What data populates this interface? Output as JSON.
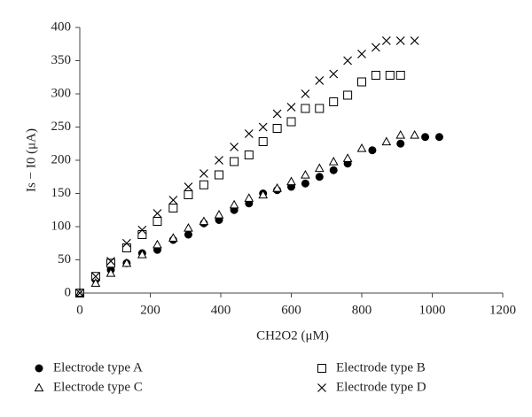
{
  "chart_data": {
    "type": "scatter",
    "xlabel": "CH2O2 (μM)",
    "ylabel": "Is − I0 (μA)",
    "xlim": [
      0,
      1200
    ],
    "xticks": [
      0,
      200,
      400,
      600,
      800,
      1000,
      1200
    ],
    "ylim": [
      0,
      400
    ],
    "yticks": [
      0,
      50,
      100,
      150,
      200,
      250,
      300,
      350,
      400
    ],
    "grid": false,
    "legend": "bottom",
    "series": [
      {
        "name": "Electrode type A",
        "marker": "circle",
        "color": "#000000",
        "x": [
          0,
          45,
          88,
          133,
          177,
          220,
          265,
          308,
          352,
          395,
          438,
          480,
          520,
          560,
          600,
          640,
          680,
          720,
          760,
          830,
          910,
          980,
          1020
        ],
        "values": [
          0,
          20,
          35,
          45,
          60,
          65,
          80,
          88,
          105,
          110,
          125,
          135,
          150,
          155,
          160,
          165,
          175,
          185,
          195,
          215,
          225,
          235,
          235
        ]
      },
      {
        "name": "Electrode type B",
        "marker": "square",
        "color": "#000000",
        "x": [
          0,
          45,
          88,
          133,
          177,
          220,
          265,
          308,
          352,
          395,
          438,
          480,
          520,
          560,
          600,
          640,
          680,
          720,
          760,
          800,
          840,
          880,
          910
        ],
        "values": [
          0,
          25,
          45,
          68,
          88,
          108,
          128,
          148,
          163,
          178,
          198,
          208,
          228,
          248,
          258,
          278,
          278,
          288,
          298,
          318,
          328,
          328,
          328
        ]
      },
      {
        "name": "Electrode type C",
        "marker": "triangle",
        "color": "#000000",
        "x": [
          0,
          45,
          88,
          133,
          177,
          220,
          265,
          308,
          352,
          395,
          438,
          480,
          520,
          560,
          600,
          640,
          680,
          720,
          760,
          800,
          870,
          910,
          950
        ],
        "values": [
          0,
          15,
          30,
          45,
          58,
          73,
          83,
          98,
          108,
          118,
          133,
          143,
          148,
          158,
          168,
          178,
          188,
          198,
          203,
          218,
          228,
          238,
          238
        ]
      },
      {
        "name": "Electrode type D",
        "marker": "cross",
        "color": "#000000",
        "x": [
          0,
          45,
          88,
          133,
          177,
          220,
          265,
          308,
          352,
          395,
          438,
          480,
          520,
          560,
          600,
          640,
          680,
          720,
          760,
          800,
          840,
          870,
          910,
          950
        ],
        "values": [
          0,
          25,
          48,
          75,
          95,
          120,
          140,
          160,
          180,
          200,
          220,
          240,
          250,
          270,
          280,
          300,
          320,
          330,
          350,
          360,
          370,
          380,
          380,
          380
        ]
      }
    ]
  }
}
